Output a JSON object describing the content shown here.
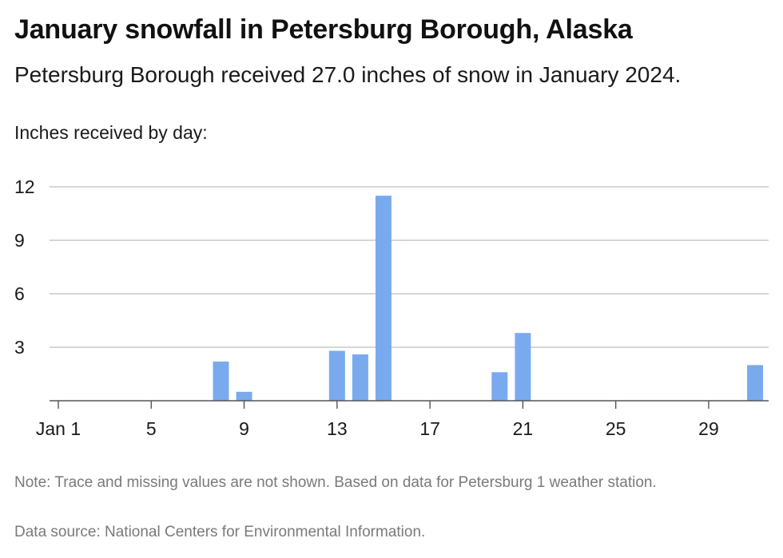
{
  "chart_data": {
    "type": "bar",
    "title": "January snowfall in Petersburg Borough, Alaska",
    "subtitle": "Petersburg Borough received 27.0 inches of snow in January 2024.",
    "ylabel": "Inches received by day:",
    "xlabel": "",
    "x": [
      8,
      9,
      13,
      14,
      15,
      20,
      21,
      31
    ],
    "values": [
      2.2,
      0.5,
      2.8,
      2.6,
      11.5,
      1.6,
      3.8,
      2.0
    ],
    "xlim": [
      1,
      31
    ],
    "ylim": [
      0,
      12
    ],
    "x_ticks": [
      1,
      5,
      9,
      13,
      17,
      21,
      25,
      29
    ],
    "x_tick_labels": [
      "Jan 1",
      "5",
      "9",
      "13",
      "17",
      "21",
      "25",
      "29"
    ],
    "y_ticks": [
      3,
      6,
      9,
      12
    ],
    "y_tick_labels": [
      "3",
      "6",
      "9",
      "12"
    ],
    "grid": true,
    "bar_color": "#7aaaee",
    "note": "Note: Trace and missing values are not shown. Based on data for Petersburg 1 weather station.",
    "source": "Data source: National Centers for Environmental Information."
  }
}
